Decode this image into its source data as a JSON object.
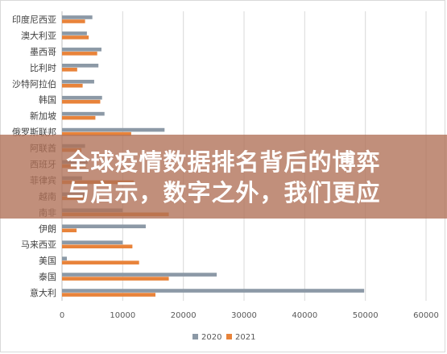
{
  "chart_data": {
    "type": "bar",
    "orientation": "horizontal",
    "categories": [
      "印度尼西亚",
      "澳大利亚",
      "墨西哥",
      "比利时",
      "沙特阿拉伯",
      "韩国",
      "新加坡",
      "俄罗斯联邦",
      "阿联酋",
      "西班牙",
      "菲律宾",
      "越南",
      "南非",
      "伊朗",
      "马来西亚",
      "美国",
      "泰国",
      "意大利"
    ],
    "series": [
      {
        "name": "2020",
        "color": "#8c99a6",
        "values": [
          5000,
          4100,
          6500,
          6000,
          5300,
          6600,
          7000,
          16900,
          3800,
          4200,
          3300,
          4000,
          10000,
          13800,
          10000,
          800,
          25500,
          49800
        ]
      },
      {
        "name": "2021",
        "color": "#e8833a",
        "values": [
          3800,
          4400,
          5800,
          2500,
          3400,
          6300,
          5500,
          11400,
          3200,
          4000,
          11800,
          3600,
          17600,
          2400,
          11600,
          12700,
          17600,
          15400
        ]
      }
    ],
    "xlim": [
      0,
      60000
    ],
    "xticks": [
      "0",
      "10000",
      "20000",
      "30000",
      "40000",
      "50000",
      "60000"
    ],
    "grid": true,
    "legend_position": "bottom"
  },
  "overlay": {
    "line1": "全球疫情数据排名背后的博弈",
    "line2": "与启示，数字之外，我们更应"
  }
}
